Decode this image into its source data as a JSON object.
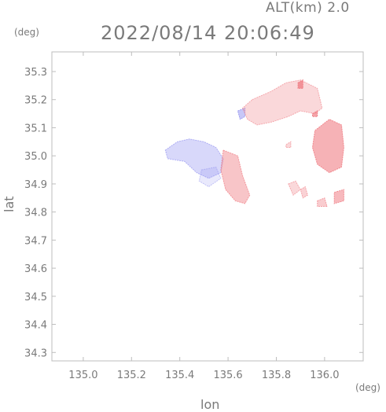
{
  "header": {
    "altitude": "ALT(km) 2.0",
    "timestamp": "2022/08/14 20:06:49"
  },
  "chart_data": {
    "type": "heatmap",
    "title": "",
    "xlabel": "lon",
    "ylabel": "lat",
    "x_unit": "(deg)",
    "y_unit": "(deg)",
    "xlim": [
      134.87,
      136.16
    ],
    "ylim": [
      34.27,
      35.37
    ],
    "xticks": [
      "135.0",
      "135.2",
      "135.4",
      "135.6",
      "135.8",
      "136.0"
    ],
    "xtick_values": [
      135.0,
      135.2,
      135.4,
      135.6,
      135.8,
      136.0
    ],
    "yticks": [
      "34.3",
      "34.4",
      "34.5",
      "34.6",
      "34.7",
      "34.8",
      "34.9",
      "35.0",
      "35.1",
      "35.2",
      "35.3"
    ],
    "ytick_values": [
      34.3,
      34.4,
      34.5,
      34.6,
      34.7,
      34.8,
      34.9,
      35.0,
      35.1,
      35.2,
      35.3
    ],
    "grid": false,
    "colors": {
      "negative": "#8f8ff0",
      "positive": "#f07f86",
      "frame": "#bdbdbd",
      "text": "#7a7a7a"
    },
    "regions": [
      {
        "sign": "negative",
        "intensity": 0.35,
        "points": [
          [
            135.34,
            35.02
          ],
          [
            135.39,
            35.05
          ],
          [
            135.44,
            35.06
          ],
          [
            135.5,
            35.05
          ],
          [
            135.55,
            35.03
          ],
          [
            135.58,
            34.99
          ],
          [
            135.57,
            34.94
          ],
          [
            135.52,
            34.92
          ],
          [
            135.47,
            34.94
          ],
          [
            135.42,
            34.98
          ],
          [
            135.35,
            34.99
          ]
        ]
      },
      {
        "sign": "negative",
        "intensity": 0.2,
        "points": [
          [
            135.49,
            34.95
          ],
          [
            135.55,
            34.96
          ],
          [
            135.57,
            34.92
          ],
          [
            135.52,
            34.89
          ],
          [
            135.48,
            34.91
          ]
        ]
      },
      {
        "sign": "positive",
        "intensity": 0.45,
        "points": [
          [
            135.58,
            35.02
          ],
          [
            135.64,
            35.0
          ],
          [
            135.66,
            34.93
          ],
          [
            135.69,
            34.86
          ],
          [
            135.67,
            34.83
          ],
          [
            135.63,
            34.84
          ],
          [
            135.59,
            34.88
          ],
          [
            135.57,
            34.95
          ]
        ]
      },
      {
        "sign": "negative",
        "intensity": 0.5,
        "points": [
          [
            135.64,
            35.16
          ],
          [
            135.67,
            35.17
          ],
          [
            135.67,
            35.14
          ],
          [
            135.65,
            35.13
          ]
        ]
      },
      {
        "sign": "positive",
        "intensity": 0.3,
        "points": [
          [
            135.7,
            35.2
          ],
          [
            135.78,
            35.23
          ],
          [
            135.84,
            35.26
          ],
          [
            135.9,
            35.27
          ],
          [
            135.97,
            35.24
          ],
          [
            135.99,
            35.17
          ],
          [
            135.96,
            35.15
          ],
          [
            135.9,
            35.16
          ],
          [
            135.85,
            35.14
          ],
          [
            135.78,
            35.12
          ],
          [
            135.72,
            35.11
          ],
          [
            135.68,
            35.13
          ],
          [
            135.66,
            35.17
          ]
        ]
      },
      {
        "sign": "positive",
        "intensity": 0.6,
        "points": [
          [
            135.96,
            35.09
          ],
          [
            136.02,
            35.13
          ],
          [
            136.07,
            35.11
          ],
          [
            136.08,
            35.03
          ],
          [
            136.07,
            34.96
          ],
          [
            136.02,
            34.94
          ],
          [
            135.97,
            34.97
          ],
          [
            135.95,
            35.03
          ]
        ]
      },
      {
        "sign": "positive",
        "intensity": 0.55,
        "points": [
          [
            136.04,
            34.87
          ],
          [
            136.08,
            34.88
          ],
          [
            136.08,
            34.84
          ],
          [
            136.04,
            34.83
          ]
        ]
      },
      {
        "sign": "positive",
        "intensity": 0.4,
        "points": [
          [
            135.97,
            34.84
          ],
          [
            136.0,
            34.85
          ],
          [
            136.01,
            34.82
          ],
          [
            135.97,
            34.82
          ]
        ]
      },
      {
        "sign": "positive",
        "intensity": 0.3,
        "points": [
          [
            135.85,
            34.9
          ],
          [
            135.88,
            34.91
          ],
          [
            135.9,
            34.88
          ],
          [
            135.87,
            34.86
          ]
        ]
      },
      {
        "sign": "positive",
        "intensity": 0.35,
        "points": [
          [
            135.9,
            34.88
          ],
          [
            135.92,
            34.89
          ],
          [
            135.93,
            34.86
          ],
          [
            135.91,
            34.85
          ]
        ]
      },
      {
        "sign": "positive",
        "intensity": 0.7,
        "points": [
          [
            135.95,
            35.15
          ],
          [
            135.97,
            35.16
          ],
          [
            135.97,
            35.14
          ],
          [
            135.95,
            35.14
          ]
        ]
      },
      {
        "sign": "positive",
        "intensity": 0.8,
        "points": [
          [
            135.89,
            35.26
          ],
          [
            135.91,
            35.27
          ],
          [
            135.91,
            35.24
          ],
          [
            135.89,
            35.24
          ]
        ]
      },
      {
        "sign": "positive",
        "intensity": 0.3,
        "points": [
          [
            135.84,
            35.04
          ],
          [
            135.86,
            35.05
          ],
          [
            135.86,
            35.03
          ],
          [
            135.84,
            35.03
          ]
        ]
      }
    ]
  }
}
